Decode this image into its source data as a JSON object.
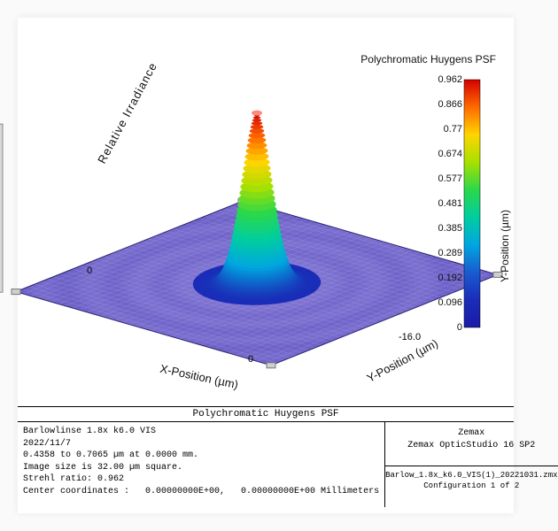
{
  "chart": {
    "type": "3d-surface-psf",
    "colorbar": {
      "title": "Polychromatic Huygens PSF",
      "axis_label": "Y-Position (µm)",
      "ticks": [
        0.962,
        0.866,
        0.77,
        0.674,
        0.577,
        0.481,
        0.385,
        0.289,
        0.192,
        0.096,
        0
      ],
      "gradient_colors": [
        "#d40000",
        "#ff6a00",
        "#ffd400",
        "#a8e000",
        "#2bd84a",
        "#00cda0",
        "#00a6e0",
        "#1a5bd0",
        "#1a2db8",
        "#1a1aa8"
      ]
    },
    "axes": {
      "z_label": "Relative Irradiance",
      "x_label": "X-Position (µm)",
      "y_label": "Y-Position (µm)",
      "z_tick_0": "0",
      "x_tick_0": "0",
      "y_tick_min": "-16.0"
    },
    "surface": {
      "base_color": "#6b5fc7",
      "base_highlight": "#9a8fe0",
      "ripple_color": "#7a6fd0",
      "peak_gradient": [
        "#1a2db8",
        "#00a6e0",
        "#00cda0",
        "#2bd84a",
        "#a8e000",
        "#ffd400",
        "#ff6a00",
        "#d40000"
      ],
      "grid_extent_um": 32.0,
      "strehl_peak": 0.962
    }
  },
  "footer": {
    "title": "Polychromatic Huygens PSF",
    "left_lines": [
      "Barlowlinse 1.8x k6.0 VIS",
      "2022/11/7",
      "0.4358 to 0.7065 µm at 0.0000 mm.",
      "Image size is 32.00 µm square.",
      "Strehl ratio: 0.962",
      "Center coordinates :   0.00000000E+00,   0.00000000E+00 Millimeters"
    ],
    "right_top": [
      "Zemax",
      "Zemax OpticStudio 16 SP2"
    ],
    "right_bottom": [
      "Barlow_1.8x_k6.0_VIS(1)_20221031.zmx",
      "Configuration 1 of 2"
    ]
  }
}
